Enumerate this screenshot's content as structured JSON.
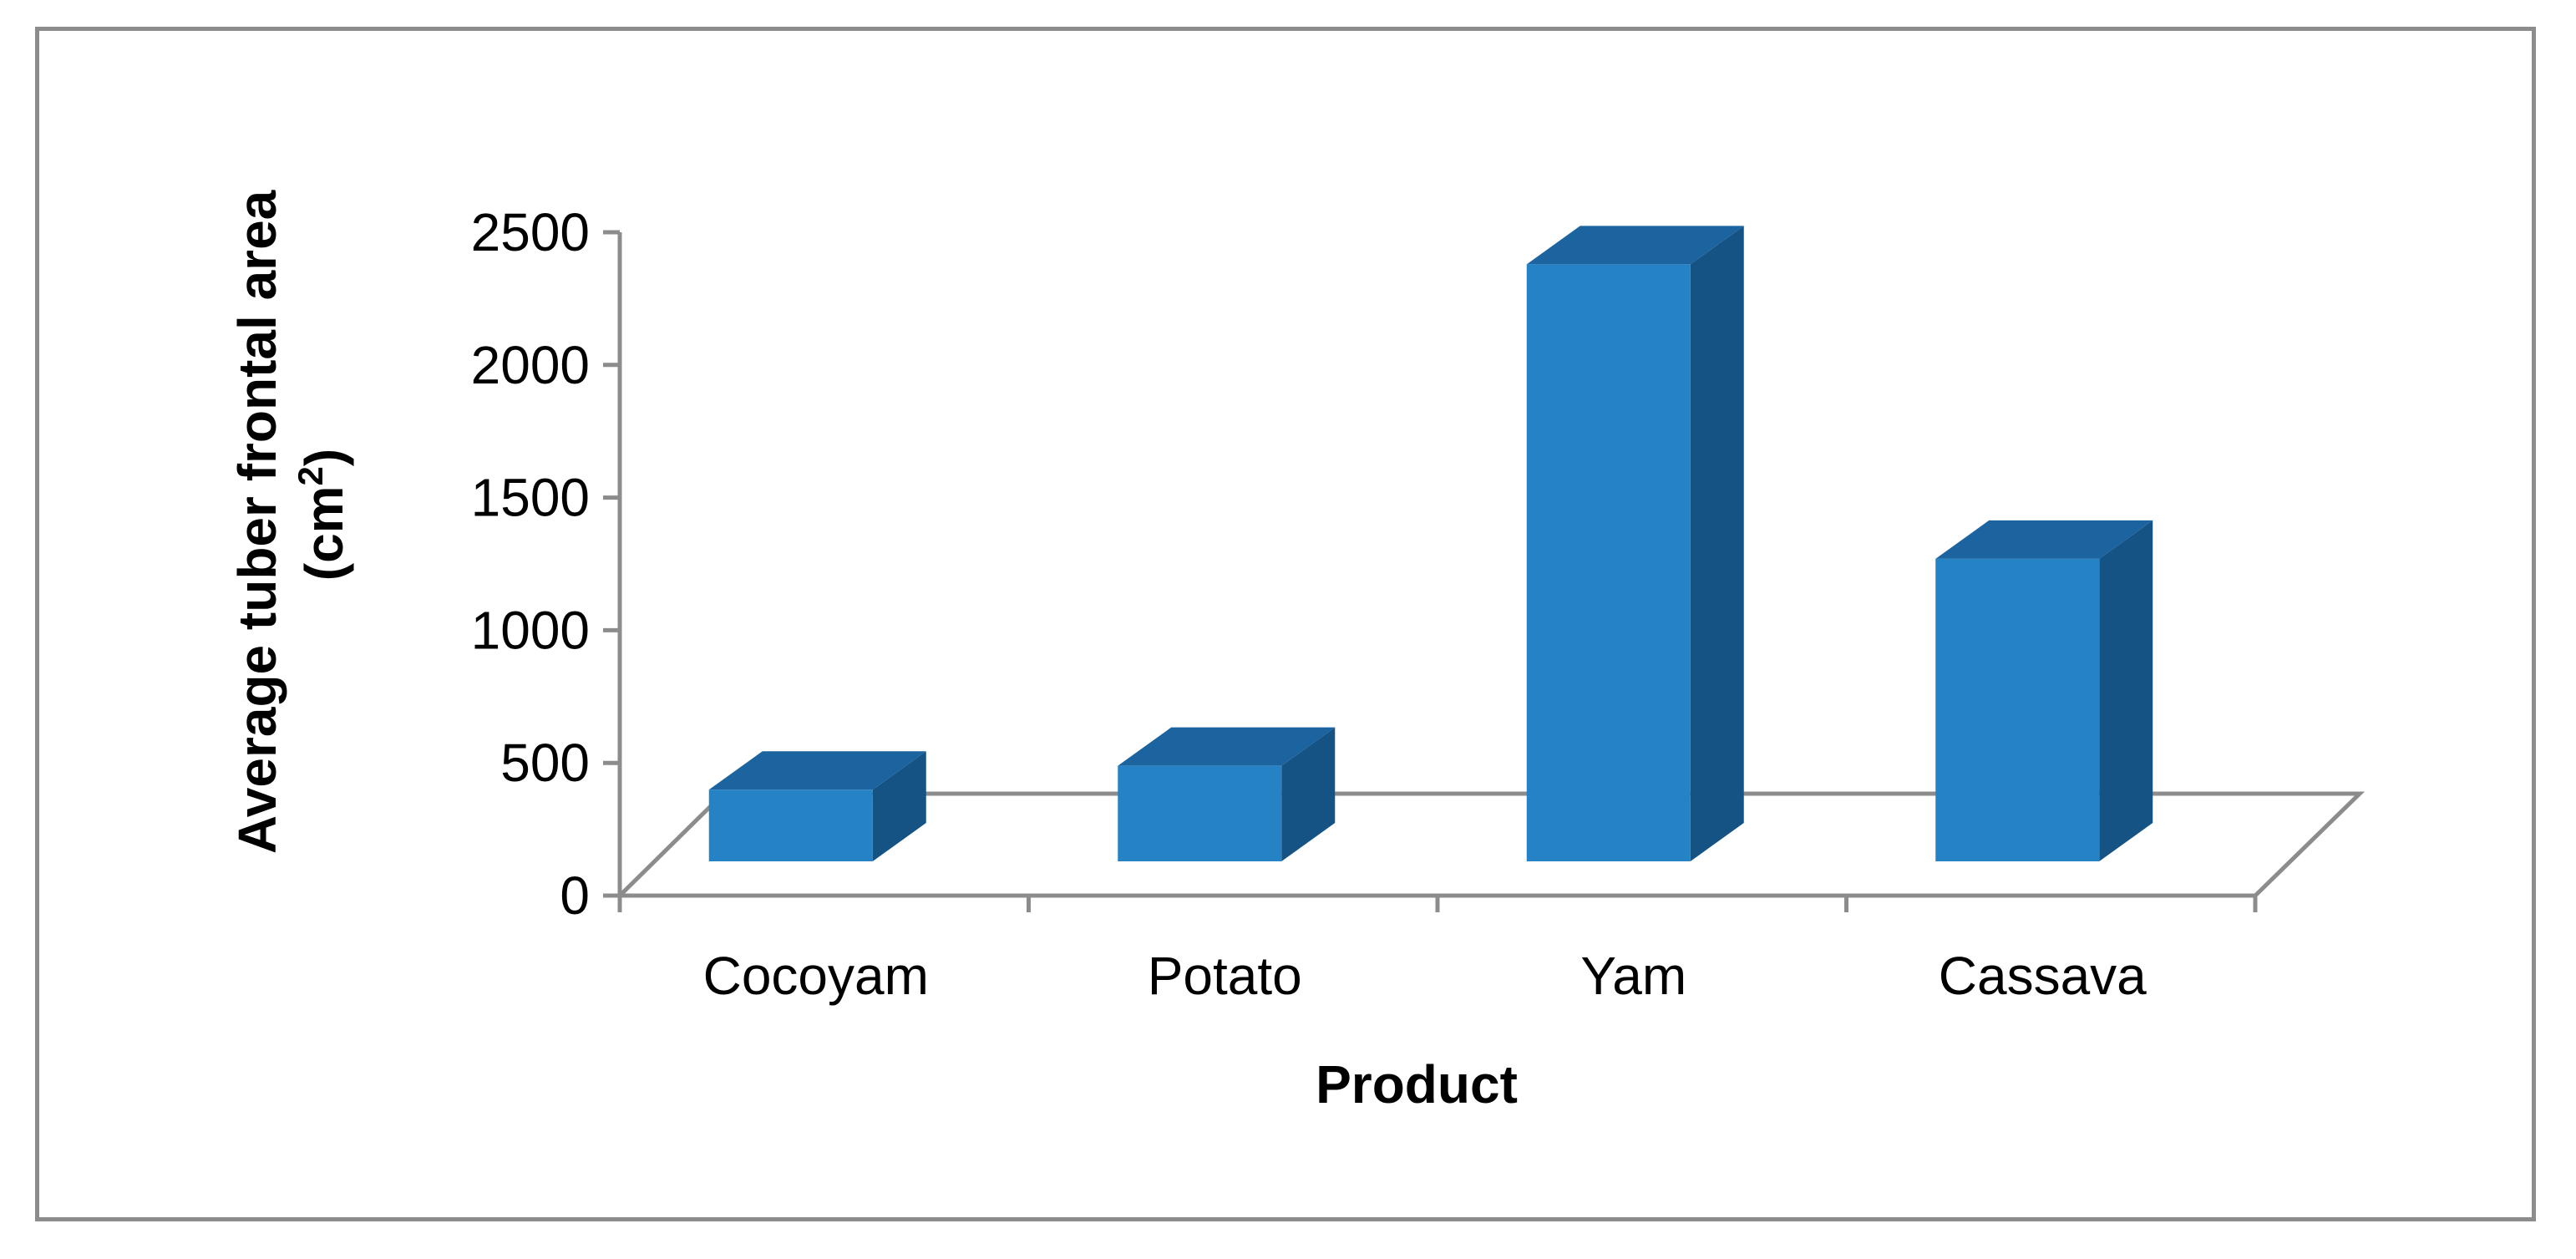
{
  "chart_data": {
    "type": "bar",
    "style": "3d-column",
    "categories": [
      "Cocoyam",
      "Potato",
      "Yam",
      "Cassava"
    ],
    "values": [
      270,
      360,
      2250,
      1140
    ],
    "xlabel": "Product",
    "ylabel_line1": "Average tuber frontal area",
    "ylabel_line2_base": "(cm",
    "ylabel_line2_sup": "2",
    "ylabel_line2_end": ")",
    "ylim": [
      0,
      2500
    ],
    "yticks": [
      "0",
      "500",
      "1000",
      "1500",
      "2000",
      "2500"
    ],
    "grid": false,
    "legend": "none",
    "colors": {
      "bar_front": "#2582c4",
      "bar_top": "#1c64a0",
      "bar_side": "#145384",
      "axis": "#8c8c8c",
      "frame": "#8c8c8c"
    }
  }
}
